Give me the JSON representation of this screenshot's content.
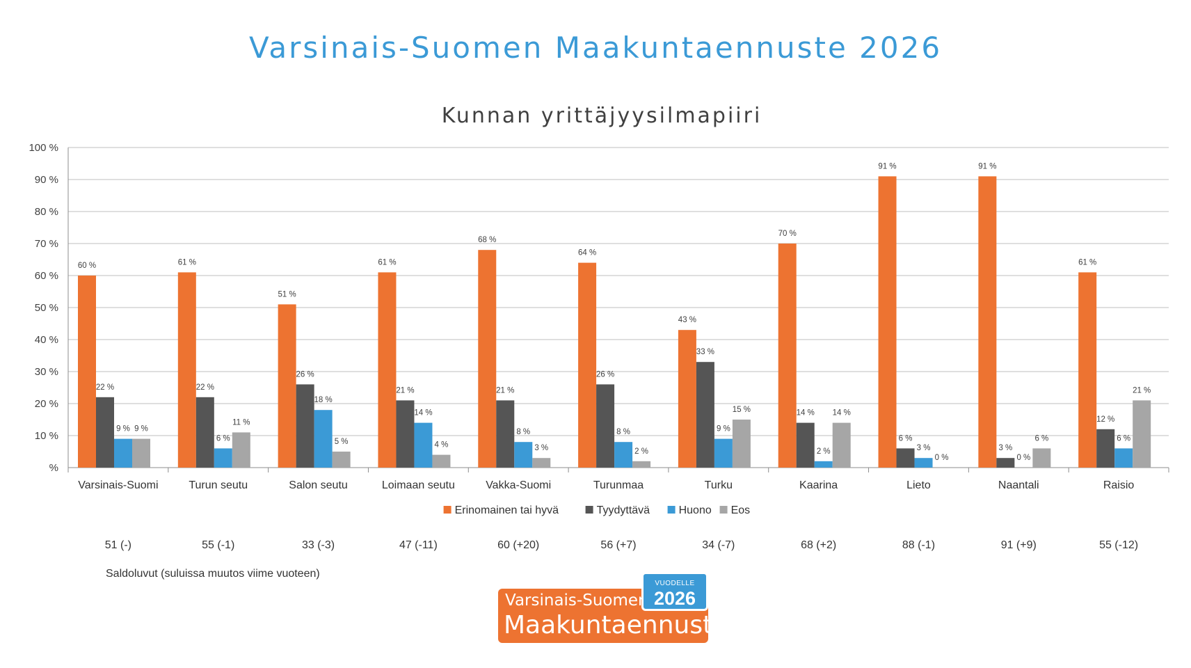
{
  "page": {
    "title": "Varsinais-Suomen Maakuntaennuste 2026",
    "saldo_label": "Saldoluvut (suluissa muutos viime vuoteen)"
  },
  "logo": {
    "small": "VUODELLE",
    "year": "2026",
    "line1": "Varsinais-Suomen",
    "line2": "Maakuntaennuste"
  },
  "chart_data": {
    "type": "bar",
    "title": "Kunnan yrittäjyysilmapiiri",
    "ylim": [
      0,
      100
    ],
    "yticks": [
      "%",
      "10 %",
      "20 %",
      "30 %",
      "40 %",
      "50 %",
      "60 %",
      "70 %",
      "80 %",
      "90 %",
      "100 %"
    ],
    "grid": true,
    "legend_position": "bottom",
    "categories": [
      "Varsinais-Suomi",
      "Turun seutu",
      "Salon seutu",
      "Loimaan seutu",
      "Vakka-Suomi",
      "Turunmaa",
      "Turku",
      "Kaarina",
      "Lieto",
      "Naantali",
      "Raisio"
    ],
    "series": [
      {
        "name": "Erinomainen tai hyvä",
        "color": "#ed7331",
        "values": [
          60,
          61,
          51,
          61,
          68,
          64,
          43,
          70,
          91,
          91,
          61
        ]
      },
      {
        "name": "Tyydyttävä",
        "color": "#555555",
        "values": [
          22,
          22,
          26,
          21,
          21,
          26,
          33,
          14,
          6,
          3,
          12
        ]
      },
      {
        "name": "Huono",
        "color": "#3b9ad6",
        "values": [
          9,
          6,
          18,
          14,
          8,
          8,
          9,
          2,
          3,
          0,
          6
        ]
      },
      {
        "name": "Eos",
        "color": "#a6a6a6",
        "values": [
          9,
          11,
          5,
          4,
          3,
          2,
          15,
          14,
          0,
          6,
          21
        ]
      }
    ],
    "saldo": [
      "51 (-)",
      "55 (-1)",
      "33 (-3)",
      "47 (-11)",
      "60 (+20)",
      "56 (+7)",
      "34 (-7)",
      "68 (+2)",
      "88 (-1)",
      "91 (+9)",
      "55 (-12)"
    ]
  }
}
